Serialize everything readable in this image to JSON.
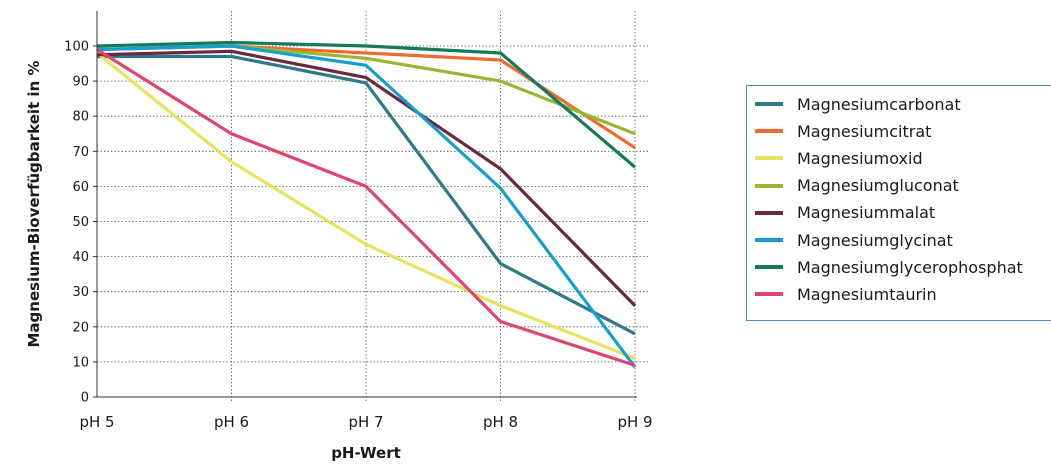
{
  "chart_data": {
    "type": "line",
    "xlabel": "pH-Wert",
    "ylabel": "Magnesium-Bioverfügbarkeit in %",
    "categories": [
      "pH 5",
      "pH 6",
      "pH 7",
      "pH 8",
      "pH 9"
    ],
    "ylim": [
      0,
      100
    ],
    "yticks": [
      0,
      10,
      20,
      30,
      40,
      50,
      60,
      70,
      80,
      90,
      100
    ],
    "grid": true,
    "legend_position": "right",
    "series": [
      {
        "name": "Magnesiumcarbonat",
        "color": "#2e7a8c",
        "values": [
          97,
          97,
          89.5,
          38,
          18
        ]
      },
      {
        "name": "Magnesiumcitrat",
        "color": "#ee6b2f",
        "values": [
          99,
          100,
          98,
          96,
          71
        ]
      },
      {
        "name": "Magnesiumoxid",
        "color": "#e6e35c",
        "values": [
          98,
          67,
          43.5,
          26,
          11
        ]
      },
      {
        "name": "Magnesiumgluconat",
        "color": "#9ab531",
        "values": [
          99,
          100,
          96.5,
          90,
          75
        ]
      },
      {
        "name": "Magnesiummalat",
        "color": "#6b2841",
        "values": [
          97.5,
          98.5,
          91,
          65,
          26
        ]
      },
      {
        "name": "Magnesiumglycinat",
        "color": "#149fcf",
        "values": [
          99,
          100,
          94.5,
          59.5,
          8.5
        ]
      },
      {
        "name": "Magnesiumglycerophosphat",
        "color": "#147a5c",
        "values": [
          100,
          101,
          100,
          98,
          65.5
        ]
      },
      {
        "name": "Magnesiumtaurin",
        "color": "#e0466c",
        "values": [
          99,
          75,
          60,
          21.5,
          9
        ]
      }
    ]
  },
  "legend_border_color": "#4a8db0"
}
